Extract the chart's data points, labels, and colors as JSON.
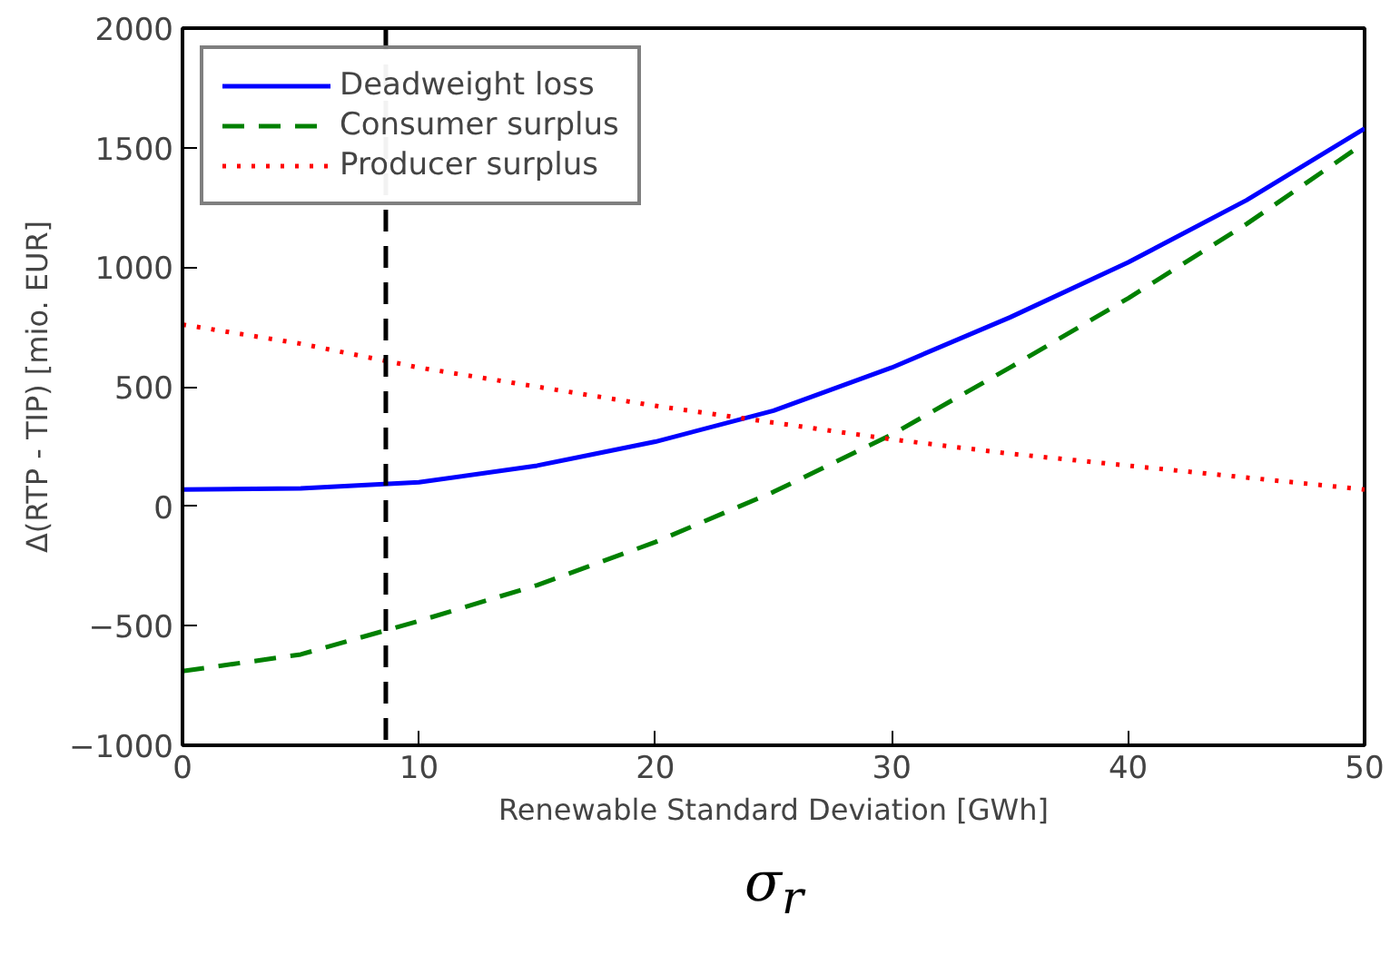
{
  "chart_data": {
    "type": "line",
    "xlabel": "Renewable Standard Deviation [GWh]",
    "ylabel": "Δ(RTP - TIP) [mio. EUR]",
    "annotations": [
      "σ$_{r}$"
    ],
    "x": [
      0,
      5,
      10,
      15,
      20,
      25,
      30,
      35,
      40,
      45,
      50
    ],
    "series": [
      {
        "name": "Deadweight loss",
        "color": "#0000ff",
        "line_style": "solid",
        "values": [
          70,
          75,
          100,
          170,
          270,
          400,
          580,
          790,
          1020,
          1280,
          1580
        ]
      },
      {
        "name": "Consumer surplus",
        "color": "#008000",
        "line_style": "dashed",
        "values": [
          -690,
          -620,
          -480,
          -330,
          -150,
          60,
          300,
          580,
          870,
          1180,
          1520
        ]
      },
      {
        "name": "Producer surplus",
        "color": "#ff0000",
        "line_style": "dotted",
        "values": [
          760,
          680,
          580,
          500,
          420,
          350,
          280,
          220,
          170,
          120,
          70
        ]
      }
    ],
    "xlim": [
      0,
      50
    ],
    "ylim": [
      -1000,
      2000
    ],
    "xticks": [
      0,
      10,
      20,
      30,
      40,
      50
    ],
    "yticks": [
      -1000,
      -500,
      0,
      500,
      1000,
      1500,
      2000
    ],
    "ref_lines": [
      {
        "axis": "x",
        "value": 8.6,
        "color": "#000000",
        "line_style": "dashed"
      }
    ],
    "grid": false,
    "legend": "top left"
  }
}
